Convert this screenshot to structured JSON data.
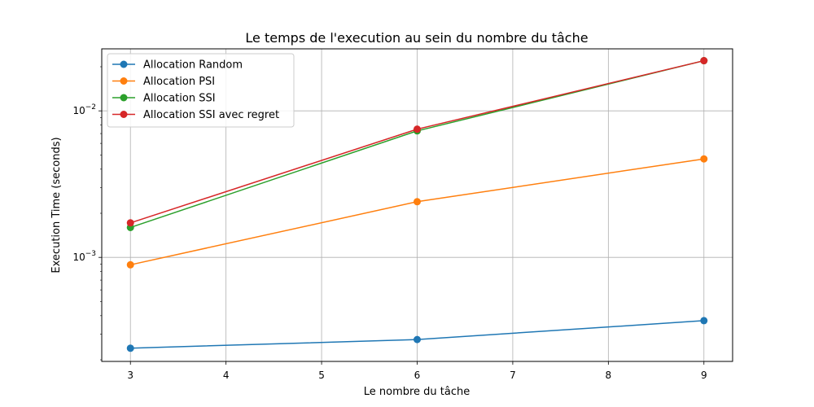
{
  "chart_data": {
    "type": "line",
    "title": "Le temps de l'execution au sein du nombre du tâche",
    "xlabel": "Le nombre du tâche",
    "ylabel": "Execution Time (seconds)",
    "x": [
      3,
      6,
      9
    ],
    "xlim": [
      2.7,
      9.3
    ],
    "xticks": [
      3,
      4,
      5,
      6,
      7,
      8,
      9
    ],
    "y_scale": "log",
    "ylim": [
      0.000195,
      0.0265
    ],
    "yticks": [
      {
        "value": 0.001,
        "base": "10",
        "exp": "−3"
      },
      {
        "value": 0.01,
        "base": "10",
        "exp": "−2"
      }
    ],
    "grid": true,
    "legend_position": "upper left",
    "series": [
      {
        "name": "Allocation Random",
        "color": "#1f77b4",
        "values": [
          0.00024,
          0.000275,
          0.00037
        ]
      },
      {
        "name": "Allocation PSI",
        "color": "#ff7f0e",
        "values": [
          0.00089,
          0.0024,
          0.0047
        ]
      },
      {
        "name": "Allocation SSI",
        "color": "#2ca02c",
        "values": [
          0.0016,
          0.0073,
          0.022
        ]
      },
      {
        "name": "Allocation SSI avec regret",
        "color": "#d62728",
        "values": [
          0.00172,
          0.0075,
          0.022
        ]
      }
    ]
  }
}
